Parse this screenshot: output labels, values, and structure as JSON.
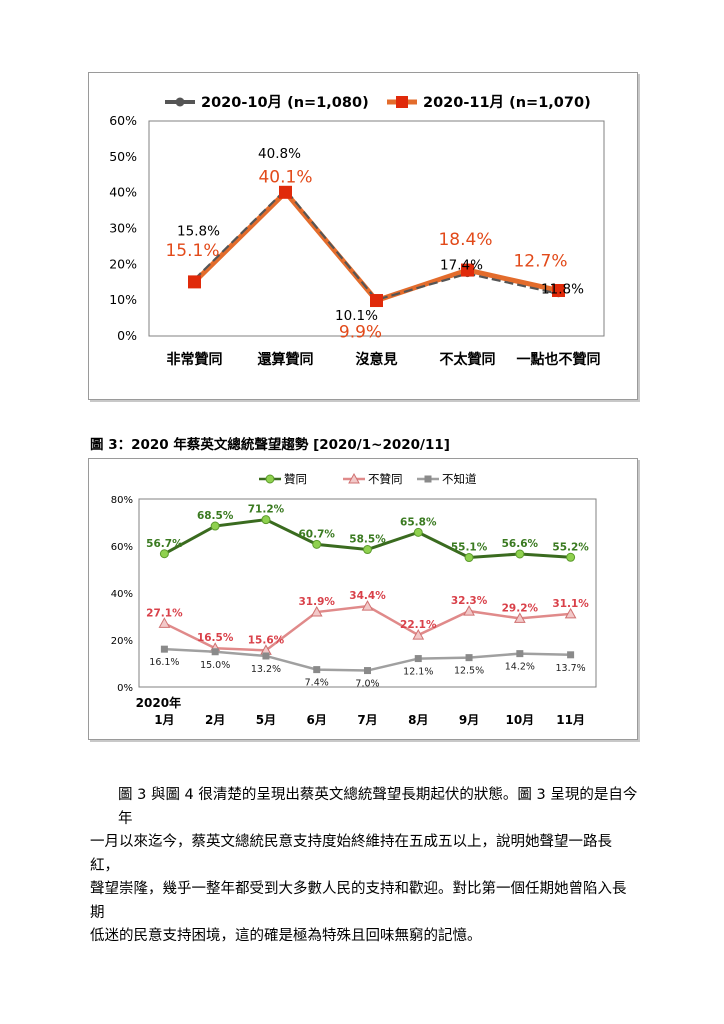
{
  "chart_data": [
    {
      "type": "line",
      "categories": [
        "非常贊同",
        "還算贊同",
        "沒意見",
        "不太贊同",
        "一點也不贊同"
      ],
      "series": [
        {
          "name": "2020-10月  (n=1,080)",
          "values": [
            15.8,
            40.8,
            10.1,
            17.4,
            11.8
          ],
          "labels": [
            "15.8%",
            "40.8%",
            "10.1%",
            "17.4%",
            "11.8%"
          ],
          "color": "#555555"
        },
        {
          "name": "2020-11月  (n=1,070)",
          "values": [
            15.1,
            40.1,
            9.9,
            18.4,
            12.7
          ],
          "labels": [
            "15.1%",
            "40.1%",
            "9.9%",
            "18.4%",
            "12.7%"
          ],
          "color": "#e36c2c",
          "marker_color": "#e02a0a",
          "label_color": "#e24a1a"
        }
      ],
      "ylim": [
        0,
        60
      ],
      "yticks": [
        "0%",
        "10%",
        "20%",
        "30%",
        "40%",
        "50%",
        "60%"
      ],
      "legend": "top",
      "grid": false
    },
    {
      "type": "line",
      "categories": [
        "2020年\n1月",
        "2月",
        "5月",
        "6月",
        "7月",
        "8月",
        "9月",
        "10月",
        "11月"
      ],
      "series": [
        {
          "name": "贊同",
          "values": [
            56.7,
            68.5,
            71.2,
            60.7,
            58.5,
            65.8,
            55.1,
            56.6,
            55.2
          ],
          "labels": [
            "56.7%",
            "68.5%",
            "71.2%",
            "60.7%",
            "58.5%",
            "65.8%",
            "55.1%",
            "56.6%",
            "55.2%"
          ],
          "color": "#3a6b1f",
          "marker_color": "#8fd14f",
          "label_color": "#3a7a20"
        },
        {
          "name": "不贊同",
          "values": [
            27.1,
            16.5,
            15.6,
            31.9,
            34.4,
            22.1,
            32.3,
            29.2,
            31.1
          ],
          "labels": [
            "27.1%",
            "16.5%",
            "15.6%",
            "31.9%",
            "34.4%",
            "22.1%",
            "32.3%",
            "29.2%",
            "31.1%"
          ],
          "color": "#e08a8a",
          "marker_color": "#f2c9c9",
          "label_color": "#d9414a"
        },
        {
          "name": "不知道",
          "values": [
            16.1,
            15.0,
            13.2,
            7.4,
            7.0,
            12.1,
            12.5,
            14.2,
            13.7
          ],
          "labels": [
            "16.1%",
            "15.0%",
            "13.2%",
            "7.4%",
            "7.0%",
            "12.1%",
            "12.5%",
            "14.2%",
            "13.7%"
          ],
          "color": "#a0a0a0",
          "marker_color": "#8a8a8a",
          "label_color": "#222222"
        }
      ],
      "ylim": [
        0,
        80
      ],
      "yticks": [
        "0%",
        "20%",
        "40%",
        "60%",
        "80%"
      ],
      "legend": "top",
      "grid": false
    }
  ],
  "caption": "圖 3：2020 年蔡英文總統聲望趨勢  [2020/1~2020/11]",
  "paragraph": [
    "圖 3 與圖 4 很清楚的呈現出蔡英文總統聲望長期起伏的狀態。圖 3 呈現的是自今年",
    "一月以來迄今，蔡英文總統民意支持度始終維持在五成五以上，說明她聲望一路長紅，",
    "聲望崇隆，幾乎一整年都受到大多數人民的支持和歡迎。對比第一個任期她曾陷入長期",
    "低迷的民意支持困境，這的確是極為特殊且回味無窮的記憶。"
  ]
}
